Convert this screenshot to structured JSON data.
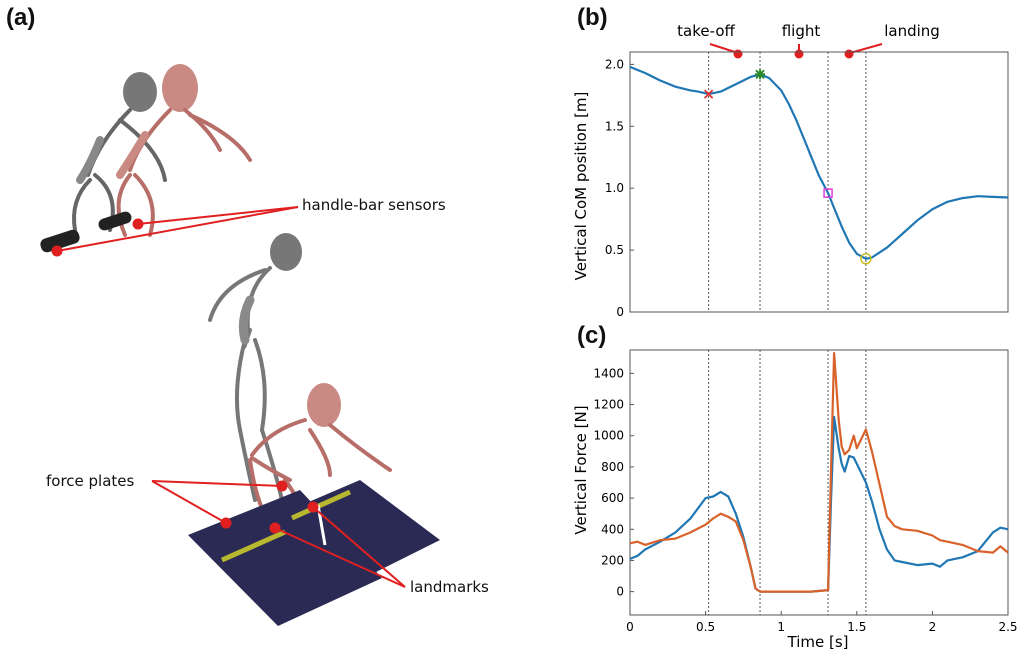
{
  "panels": {
    "a": "(a)",
    "b": "(b)",
    "c": "(c)"
  },
  "callouts_a": {
    "handle_bar": "handle-bar sensors",
    "force_plates": "force plates",
    "landmarks": "landmarks"
  },
  "phase_labels": {
    "takeoff": "take-off",
    "flight": "flight",
    "landing": "landing"
  },
  "colors": {
    "blue": "#1f77b4",
    "orange": "#d9622b",
    "red_marker": "#d81f1f",
    "plate": "#2a2a55",
    "plate_stripe": "#b8b830"
  },
  "chart_data": [
    {
      "type": "line",
      "panel": "b",
      "ylabel": "Vertical CoM position [m]",
      "xlabel": "",
      "xlim": [
        0,
        2.5
      ],
      "ylim": [
        0,
        2.1
      ],
      "yticks": [
        0,
        0.5,
        1.0,
        1.5,
        2.0
      ],
      "ytick_labels": [
        "0",
        "0.5",
        "1.0",
        "1.5",
        "2.0"
      ],
      "vlines": [
        0.52,
        0.86,
        1.31,
        1.56
      ],
      "series": [
        {
          "color": "#1f77b4",
          "x": [
            0,
            0.1,
            0.2,
            0.3,
            0.4,
            0.45,
            0.52,
            0.6,
            0.7,
            0.8,
            0.86,
            0.92,
            1.0,
            1.05,
            1.1,
            1.15,
            1.2,
            1.25,
            1.31,
            1.35,
            1.4,
            1.45,
            1.5,
            1.56,
            1.6,
            1.7,
            1.8,
            1.9,
            2.0,
            2.1,
            2.2,
            2.3,
            2.4,
            2.5
          ],
          "y": [
            1.98,
            1.93,
            1.87,
            1.82,
            1.79,
            1.78,
            1.76,
            1.78,
            1.84,
            1.9,
            1.92,
            1.89,
            1.79,
            1.68,
            1.55,
            1.4,
            1.25,
            1.1,
            0.96,
            0.84,
            0.69,
            0.56,
            0.47,
            0.43,
            0.44,
            0.52,
            0.63,
            0.74,
            0.83,
            0.89,
            0.92,
            0.935,
            0.93,
            0.925
          ]
        }
      ],
      "markers": [
        {
          "symbol": "x",
          "x": 0.52,
          "y": 1.76,
          "color": "#e03030"
        },
        {
          "symbol": "star",
          "x": 0.86,
          "y": 1.92,
          "color": "#2a8a2a"
        },
        {
          "symbol": "square",
          "x": 1.31,
          "y": 0.96,
          "color": "#e040e0"
        },
        {
          "symbol": "circle",
          "x": 1.56,
          "y": 0.43,
          "color": "#c8c020"
        }
      ]
    },
    {
      "type": "line",
      "panel": "c",
      "ylabel": "Vertical Force [N]",
      "xlabel": "Time [s]",
      "xlim": [
        0,
        2.5
      ],
      "ylim": [
        -150,
        1550
      ],
      "xticks": [
        0,
        0.5,
        1,
        1.5,
        2,
        2.5
      ],
      "xtick_labels": [
        "0",
        "0.5",
        "1",
        "1.5",
        "2",
        "2.5"
      ],
      "yticks": [
        0,
        200,
        400,
        600,
        800,
        1000,
        1200,
        1400
      ],
      "ytick_labels": [
        "0",
        "200",
        "400",
        "600",
        "800",
        "1000",
        "1200",
        "1400"
      ],
      "vlines": [
        0.52,
        0.86,
        1.31,
        1.56
      ],
      "series": [
        {
          "color": "#1f77b4",
          "x": [
            0,
            0.05,
            0.1,
            0.2,
            0.3,
            0.4,
            0.5,
            0.55,
            0.6,
            0.65,
            0.7,
            0.75,
            0.8,
            0.83,
            0.86,
            1.0,
            1.1,
            1.2,
            1.31,
            1.33,
            1.35,
            1.38,
            1.4,
            1.42,
            1.45,
            1.48,
            1.5,
            1.56,
            1.6,
            1.65,
            1.7,
            1.75,
            1.8,
            1.9,
            2.0,
            2.05,
            2.1,
            2.2,
            2.3,
            2.4,
            2.45,
            2.5
          ],
          "y": [
            210,
            230,
            270,
            320,
            380,
            470,
            600,
            610,
            640,
            610,
            500,
            350,
            150,
            20,
            0,
            0,
            0,
            0,
            10,
            600,
            1120,
            920,
            820,
            770,
            870,
            860,
            820,
            700,
            580,
            400,
            270,
            200,
            190,
            170,
            180,
            160,
            200,
            220,
            260,
            380,
            410,
            400
          ]
        },
        {
          "color": "#d9622b",
          "x": [
            0,
            0.05,
            0.1,
            0.2,
            0.3,
            0.4,
            0.5,
            0.55,
            0.6,
            0.65,
            0.7,
            0.75,
            0.8,
            0.83,
            0.86,
            1.0,
            1.1,
            1.2,
            1.31,
            1.33,
            1.35,
            1.38,
            1.4,
            1.42,
            1.45,
            1.48,
            1.5,
            1.56,
            1.6,
            1.65,
            1.7,
            1.75,
            1.8,
            1.9,
            2.0,
            2.05,
            2.1,
            2.2,
            2.3,
            2.4,
            2.45,
            2.5
          ],
          "y": [
            310,
            320,
            300,
            330,
            340,
            380,
            430,
            470,
            500,
            480,
            450,
            330,
            150,
            20,
            0,
            0,
            0,
            0,
            10,
            800,
            1530,
            1100,
            930,
            880,
            910,
            1000,
            920,
            1040,
            900,
            690,
            480,
            420,
            400,
            390,
            360,
            330,
            320,
            300,
            260,
            250,
            290,
            250
          ]
        }
      ]
    }
  ]
}
